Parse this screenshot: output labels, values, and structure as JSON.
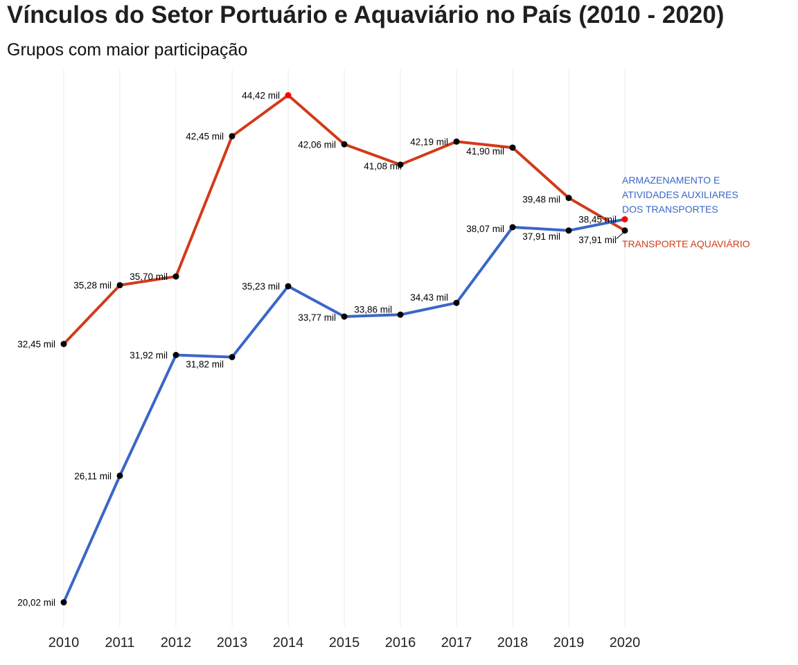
{
  "chart_data": {
    "type": "line",
    "title": "Vínculos do Setor Portuário e Aquaviário no País (2010 - 2020)",
    "subtitle": "Grupos com maior participação",
    "x": [
      "2010",
      "2011",
      "2012",
      "2013",
      "2014",
      "2015",
      "2016",
      "2017",
      "2018",
      "2019",
      "2020"
    ],
    "ylim": [
      19,
      46
    ],
    "grid": "vertical",
    "legend": "direct labels at right end",
    "series": [
      {
        "name": "TRANSPORTE AQUAVIÁRIO",
        "color": "#d13b1a",
        "values": [
          32.45,
          35.28,
          35.7,
          42.45,
          44.42,
          42.06,
          41.08,
          42.19,
          41.9,
          39.48,
          37.91
        ],
        "labels": [
          "32,45 mil",
          "35,28 mil",
          "35,70 mil",
          "42,45 mil",
          "44,42 mil",
          "42,06 mil",
          "41,08 mil",
          "42,19 mil",
          "41,90 mil",
          "39,48 mil",
          "37,91 mil"
        ]
      },
      {
        "name": "ARMAZENAMENTO E ATIVIDADES AUXILIARES DOS TRANSPORTES",
        "name_lines": [
          "ARMAZENAMENTO E",
          "ATIVIDADES AUXILIARES",
          "DOS TRANSPORTES"
        ],
        "color": "#3a66c8",
        "values": [
          20.02,
          26.11,
          31.92,
          31.82,
          35.23,
          33.77,
          33.86,
          34.43,
          38.07,
          37.91,
          38.45
        ],
        "labels": [
          "20,02 mil",
          "26,11 mil",
          "31,92 mil",
          "31,82 mil",
          "35,23 mil",
          "33,77 mil",
          "33,86 mil",
          "34,43 mil",
          "38,07 mil",
          "37,91 mil",
          "38,45 mil"
        ]
      }
    ],
    "max_point_color": "#ff0000",
    "point_color": "#000000",
    "grid_color": "#ebebeb"
  }
}
